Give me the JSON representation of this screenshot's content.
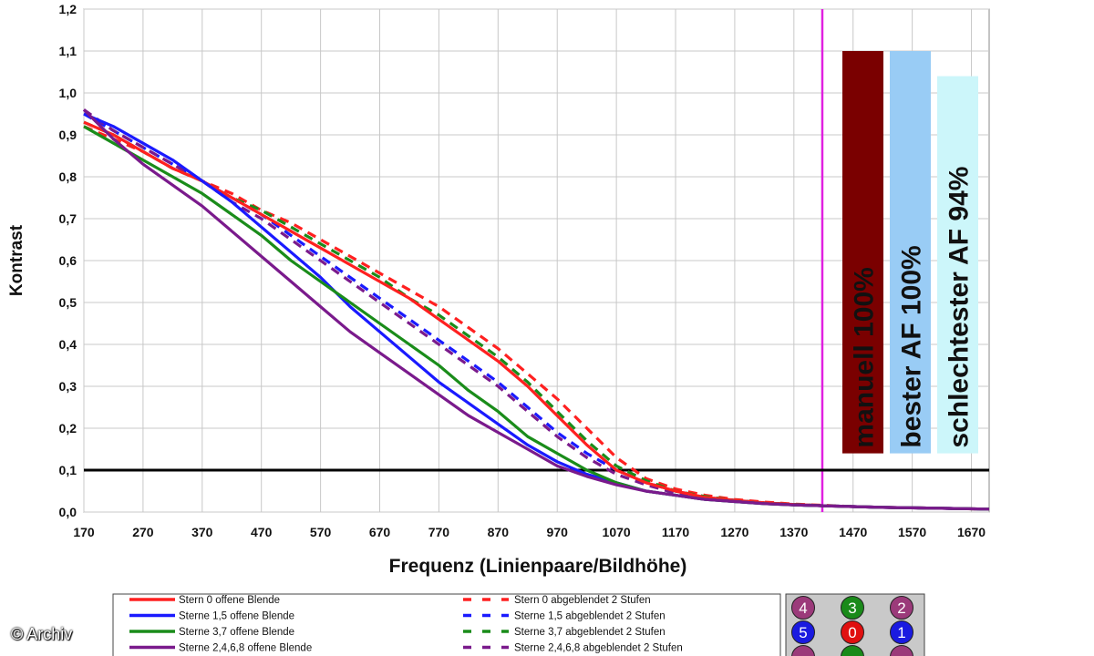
{
  "watermark": "© Archiv",
  "chart_data": {
    "type": "line",
    "xlabel": "Frequenz (Linienpaare/Bildhöhe)",
    "ylabel": "Kontrast",
    "xlim": [
      170,
      1700
    ],
    "ylim": [
      0,
      1.2
    ],
    "x_ticks": [
      "170",
      "270",
      "370",
      "470",
      "570",
      "670",
      "770",
      "870",
      "970",
      "1070",
      "1170",
      "1270",
      "1370",
      "1470",
      "1570",
      "1670"
    ],
    "y_ticks": [
      "0,0",
      "0,1",
      "0,2",
      "0,3",
      "0,4",
      "0,5",
      "0,6",
      "0,7",
      "0,8",
      "0,9",
      "1,0",
      "1,1",
      "1,2"
    ],
    "grid": true,
    "reference_line_y": 0.1,
    "marker_line_x": 1418,
    "x": [
      170,
      220,
      270,
      320,
      370,
      420,
      470,
      520,
      570,
      620,
      670,
      720,
      770,
      820,
      870,
      920,
      970,
      1020,
      1070,
      1120,
      1170,
      1220,
      1270,
      1320,
      1370,
      1420,
      1470,
      1520,
      1570,
      1620,
      1700
    ],
    "series": [
      {
        "name": "Stern 0 offene Blende",
        "color": "#ff2020",
        "dashed": false,
        "values": [
          0.93,
          0.9,
          0.86,
          0.82,
          0.79,
          0.75,
          0.71,
          0.67,
          0.63,
          0.59,
          0.55,
          0.51,
          0.46,
          0.41,
          0.36,
          0.3,
          0.23,
          0.16,
          0.1,
          0.07,
          0.05,
          0.035,
          0.028,
          0.022,
          0.018,
          0.015,
          0.013,
          0.011,
          0.01,
          0.009,
          0.007
        ]
      },
      {
        "name": "Sterne 1,5 offene Blende",
        "color": "#1a1aff",
        "dashed": false,
        "values": [
          0.95,
          0.92,
          0.88,
          0.84,
          0.79,
          0.74,
          0.68,
          0.62,
          0.56,
          0.49,
          0.43,
          0.37,
          0.31,
          0.26,
          0.21,
          0.16,
          0.12,
          0.09,
          0.07,
          0.05,
          0.04,
          0.03,
          0.025,
          0.02,
          0.017,
          0.015,
          0.013,
          0.011,
          0.01,
          0.009,
          0.007
        ]
      },
      {
        "name": "Sterne 3,7 offene Blende",
        "color": "#1a8c1a",
        "dashed": false,
        "values": [
          0.92,
          0.88,
          0.84,
          0.8,
          0.76,
          0.71,
          0.66,
          0.6,
          0.55,
          0.5,
          0.45,
          0.4,
          0.35,
          0.29,
          0.24,
          0.18,
          0.14,
          0.1,
          0.07,
          0.05,
          0.04,
          0.03,
          0.025,
          0.02,
          0.017,
          0.015,
          0.013,
          0.011,
          0.01,
          0.009,
          0.007
        ]
      },
      {
        "name": "Sterne 2,4,6,8 offene Blende",
        "color": "#7a1a8c",
        "dashed": false,
        "values": [
          0.96,
          0.89,
          0.83,
          0.78,
          0.73,
          0.67,
          0.61,
          0.55,
          0.49,
          0.43,
          0.38,
          0.33,
          0.28,
          0.23,
          0.19,
          0.15,
          0.11,
          0.085,
          0.065,
          0.05,
          0.04,
          0.03,
          0.025,
          0.02,
          0.017,
          0.015,
          0.013,
          0.011,
          0.01,
          0.009,
          0.007
        ]
      },
      {
        "name": "Stern 0 abgeblendet 2 Stufen",
        "color": "#ff2020",
        "dashed": true,
        "values": [
          0.92,
          0.89,
          0.86,
          0.82,
          0.79,
          0.76,
          0.72,
          0.69,
          0.65,
          0.61,
          0.57,
          0.53,
          0.49,
          0.44,
          0.39,
          0.33,
          0.27,
          0.2,
          0.13,
          0.08,
          0.055,
          0.04,
          0.03,
          0.024,
          0.019,
          0.016,
          0.013,
          0.011,
          0.01,
          0.009,
          0.007
        ]
      },
      {
        "name": "Sterne 1,5 abgeblendet 2 Stufen",
        "color": "#1a1aff",
        "dashed": true,
        "values": [
          0.95,
          0.91,
          0.87,
          0.83,
          0.79,
          0.75,
          0.71,
          0.66,
          0.61,
          0.56,
          0.51,
          0.46,
          0.41,
          0.36,
          0.31,
          0.25,
          0.19,
          0.14,
          0.1,
          0.07,
          0.05,
          0.035,
          0.028,
          0.022,
          0.018,
          0.015,
          0.013,
          0.011,
          0.01,
          0.009,
          0.007
        ]
      },
      {
        "name": "Sterne 3,7 abgeblendet 2 Stufen",
        "color": "#1a8c1a",
        "dashed": true,
        "values": [
          0.93,
          0.9,
          0.86,
          0.82,
          0.79,
          0.75,
          0.72,
          0.68,
          0.64,
          0.6,
          0.56,
          0.51,
          0.47,
          0.42,
          0.37,
          0.31,
          0.24,
          0.17,
          0.11,
          0.075,
          0.05,
          0.037,
          0.028,
          0.022,
          0.018,
          0.015,
          0.013,
          0.011,
          0.01,
          0.009,
          0.007
        ]
      },
      {
        "name": "Sterne 2,4,6,8 abgeblendet 2 Stufen",
        "color": "#7a1a8c",
        "dashed": true,
        "values": [
          0.96,
          0.91,
          0.87,
          0.83,
          0.79,
          0.74,
          0.7,
          0.65,
          0.6,
          0.55,
          0.5,
          0.45,
          0.4,
          0.35,
          0.3,
          0.24,
          0.18,
          0.13,
          0.09,
          0.065,
          0.045,
          0.034,
          0.026,
          0.021,
          0.017,
          0.015,
          0.013,
          0.011,
          0.01,
          0.009,
          0.007
        ]
      }
    ],
    "bars": [
      {
        "label": "manuell 100%",
        "value": 1.1,
        "color": "#7a0000"
      },
      {
        "label": "bester AF 100%",
        "value": 1.1,
        "color": "#99ccf5"
      },
      {
        "label": "schlechtester AF 94%",
        "value": 1.04,
        "color": "#ccf6fa"
      }
    ],
    "bars_bottom_value": 0.14
  },
  "sensor_grid": [
    {
      "label": "4",
      "color": "#9b3a7a"
    },
    {
      "label": "3",
      "color": "#1a8a1a"
    },
    {
      "label": "2",
      "color": "#9b3a7a"
    },
    {
      "label": "5",
      "color": "#1a1ae0"
    },
    {
      "label": "0",
      "color": "#e01010"
    },
    {
      "label": "1",
      "color": "#1a1ae0"
    },
    {
      "label": "",
      "color": "#9b3a7a"
    },
    {
      "label": "",
      "color": "#1a8a1a"
    },
    {
      "label": "",
      "color": "#9b3a7a"
    }
  ]
}
